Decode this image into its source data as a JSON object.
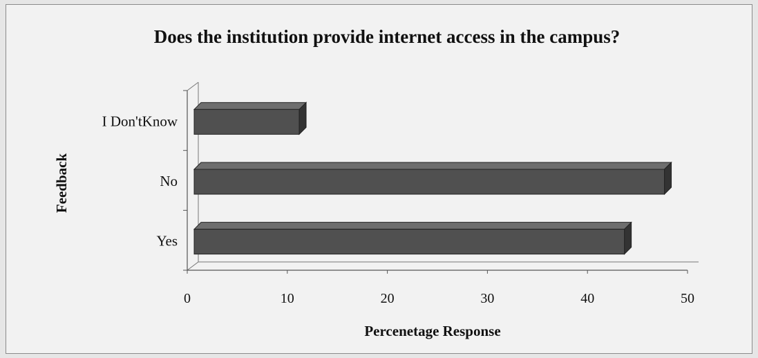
{
  "chart_data": {
    "type": "bar",
    "orientation": "horizontal",
    "title": "Does the institution provide internet access in the campus?",
    "xlabel": "Percenetage Response",
    "ylabel": "Feedback",
    "categories": [
      "Yes",
      "No",
      "I Don'tKnow"
    ],
    "values": [
      43,
      47,
      10.5
    ],
    "xlim": [
      0,
      50
    ],
    "xticks": [
      "0",
      "10",
      "20",
      "30",
      "40",
      "50"
    ],
    "bar_color": "#505050",
    "grid": false,
    "legend": "none"
  }
}
